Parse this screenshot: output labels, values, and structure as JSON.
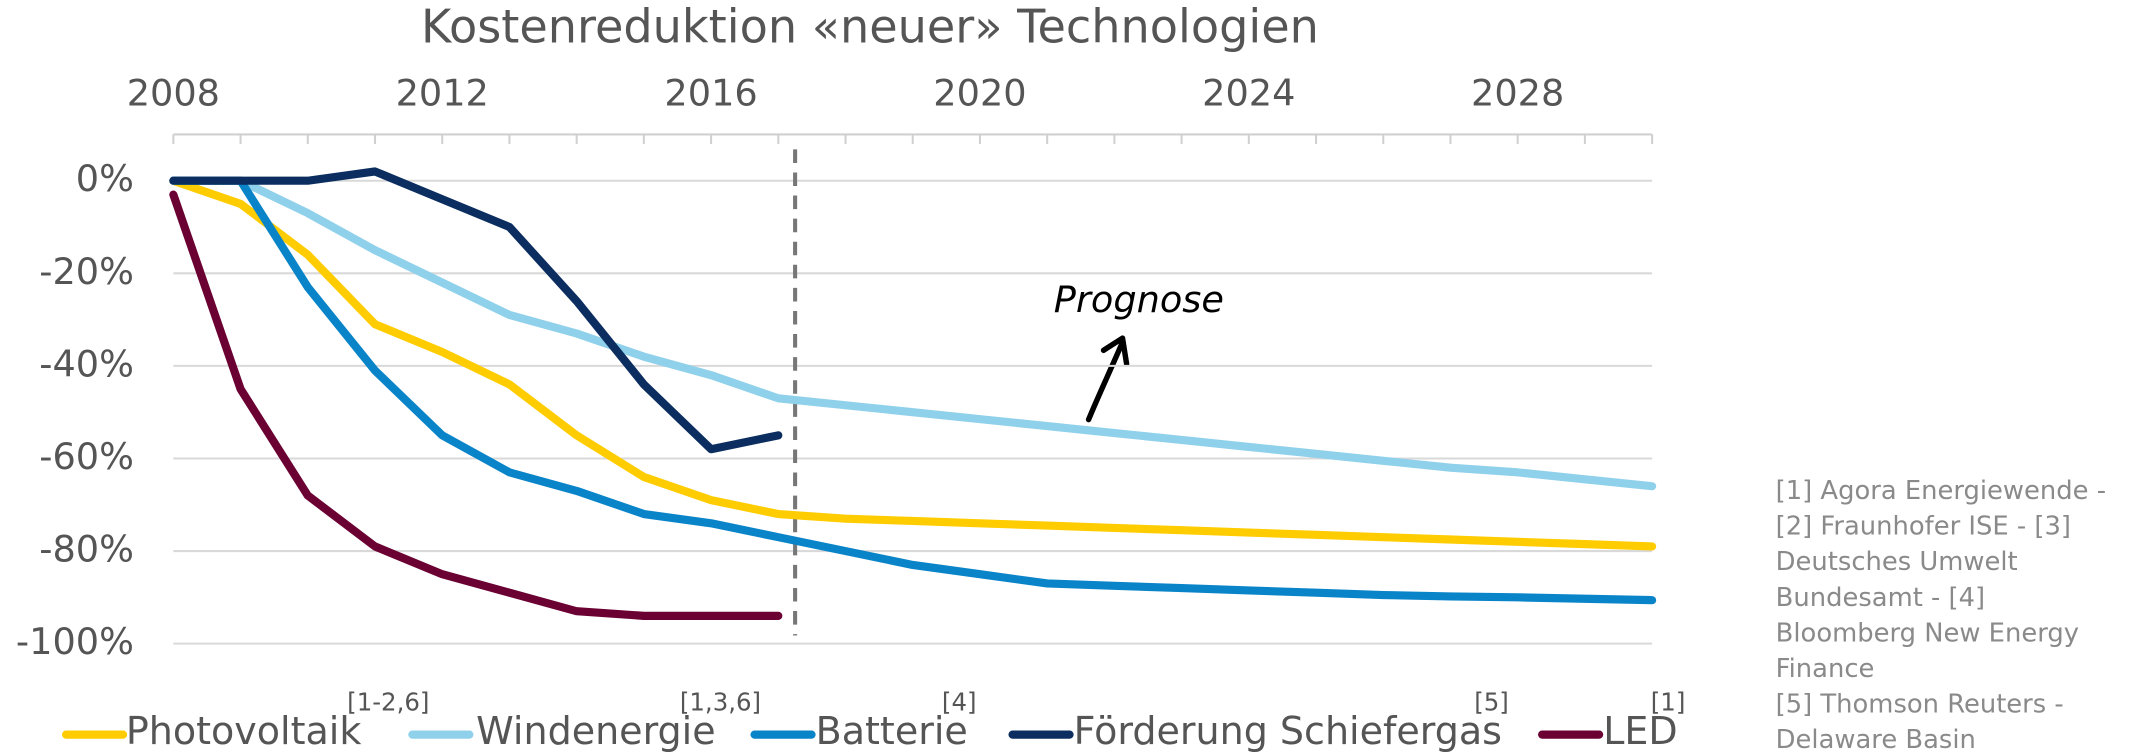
{
  "chart_data": {
    "type": "line",
    "title": "Kostenreduktion «neuer» Technologien",
    "x": [
      2008,
      2009,
      2010,
      2011,
      2012,
      2013,
      2014,
      2015,
      2016,
      2017,
      2018,
      2019,
      2020,
      2021,
      2022,
      2023,
      2024,
      2025,
      2026,
      2027,
      2028,
      2029,
      2030
    ],
    "xlim": [
      2008,
      2030
    ],
    "xticks": [
      2008,
      2012,
      2016,
      2020,
      2024,
      2028
    ],
    "ylim": [
      -100,
      10
    ],
    "yticks": [
      {
        "value": 0,
        "label": "0%"
      },
      {
        "value": -20,
        "label": "-20%"
      },
      {
        "value": -40,
        "label": "-40%"
      },
      {
        "value": -60,
        "label": "-60%"
      },
      {
        "value": -80,
        "label": "-80%"
      },
      {
        "value": -100,
        "label": "-100%"
      }
    ],
    "grid": true,
    "forecast_divider_x": 2017.25,
    "annotation": "Prognose",
    "series": [
      {
        "name": "Photovoltaik",
        "footnote": "[1-2,6]",
        "color": "#ffcc00",
        "values": [
          0,
          -5,
          -16,
          -31,
          -37,
          -44,
          -55,
          -64,
          -69,
          -72,
          -73,
          -73.5,
          -74,
          -74.5,
          -75,
          -75.5,
          -76,
          -76.5,
          -77,
          -77.5,
          -78,
          -78.5,
          -79
        ]
      },
      {
        "name": "Windenergie",
        "footnote": "[1,3,6]",
        "color": "#8fd0ea",
        "values": [
          0,
          0,
          -7,
          -15,
          -22,
          -29,
          -33,
          -38,
          -42,
          -47,
          -48.5,
          -50,
          -51.5,
          -53,
          -54.5,
          -56,
          -57.5,
          -59,
          -60.5,
          -62,
          -63,
          -64.5,
          -66
        ]
      },
      {
        "name": "Batterie",
        "footnote": "[4]",
        "color": "#0a84c8",
        "values": [
          0,
          0,
          -23,
          -41,
          -55,
          -63,
          -67,
          -72,
          -74,
          -77,
          -80,
          -83,
          -85,
          -87,
          -87.5,
          -88,
          -88.5,
          -89,
          -89.5,
          -89.8,
          -90,
          -90.3,
          -90.6
        ]
      },
      {
        "name": "Förderung Schiefergas",
        "footnote": "[5]",
        "color": "#0b2d5f",
        "values": [
          0,
          0,
          0,
          2,
          -4,
          -10,
          -26,
          -44,
          -58,
          -55,
          null,
          null,
          null,
          null,
          null,
          null,
          null,
          null,
          null,
          null,
          null,
          null,
          null
        ]
      },
      {
        "name": "LED",
        "footnote": "[1]",
        "color": "#6b0033",
        "values": [
          -3,
          -45,
          -68,
          -79,
          -85,
          -89,
          -93,
          -94,
          -94,
          -94,
          null,
          null,
          null,
          null,
          null,
          null,
          null,
          null,
          null,
          null,
          null,
          null,
          null
        ]
      }
    ],
    "sources": [
      "[1] Agora Energiewende -",
      "[2] Fraunhofer ISE - [3]",
      "Deutsches Umwelt",
      "Bundesamt - [4]",
      "Bloomberg New Energy",
      "Finance",
      "[5] Thomson Reuters  -",
      "Delaware Basin"
    ]
  }
}
